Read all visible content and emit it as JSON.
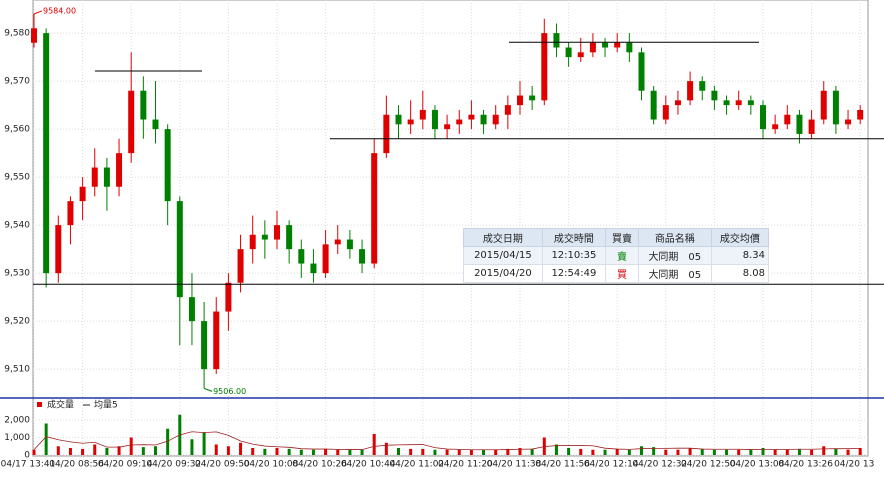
{
  "chart_data": [
    {
      "type": "candlestick",
      "categories": [
        "04/17 13:41",
        null,
        null,
        null,
        "04/20 08:56",
        null,
        null,
        null,
        "04/20 09:14",
        null,
        null,
        null,
        "04/20 09:32",
        null,
        null,
        null,
        "04/20 09:50",
        null,
        null,
        null,
        "04/20 10:08",
        null,
        null,
        null,
        "04/20 10:26",
        null,
        null,
        null,
        "04/20 10:44",
        null,
        null,
        null,
        "04/20 11:02",
        null,
        null,
        null,
        "04/20 11:20",
        null,
        null,
        null,
        "04/20 11:38",
        null,
        null,
        null,
        "04/20 11:56",
        null,
        null,
        null,
        "04/20 12:14",
        null,
        null,
        null,
        "04/20 12:32",
        null,
        null,
        null,
        "04/20 12:50",
        null,
        null,
        null,
        "04/20 13:08",
        null,
        null,
        null,
        "04/20 13:26",
        null,
        null,
        null,
        "04/20 13"
      ],
      "open": [
        9578,
        9580,
        9530,
        9540,
        9545,
        9548,
        9552,
        9548,
        9555,
        9568,
        9562,
        9560,
        9545,
        9525,
        9520,
        9510,
        9522,
        9528,
        9535,
        9538,
        9537,
        9540,
        9535,
        9532,
        9530,
        9536,
        9537,
        9535,
        9532,
        9555,
        9563,
        9561,
        9562,
        9564,
        9560,
        9561,
        9562,
        9563,
        9561,
        9563,
        9565,
        9567,
        9566,
        9580,
        9577,
        9575,
        9576,
        9578,
        9577,
        9578,
        9576,
        9568,
        9562,
        9565,
        9566,
        9570,
        9568,
        9566,
        9565,
        9566,
        9565,
        9560,
        9561,
        9563,
        9559,
        9562,
        9568,
        9561,
        9562
      ],
      "high": [
        9584,
        9581,
        9542,
        9546,
        9550,
        9556,
        9554,
        9558,
        9576,
        9571,
        9570,
        9561,
        9546,
        9530,
        9524,
        9525,
        9530,
        9538,
        9542,
        9541,
        9543,
        9541,
        9537,
        9535,
        9539,
        9540,
        9539,
        9537,
        9558,
        9567,
        9565,
        9566,
        9568,
        9565,
        9563,
        9564,
        9566,
        9564,
        9565,
        9567,
        9570,
        9569,
        9583,
        9582,
        9578,
        9579,
        9580,
        9579,
        9580,
        9580,
        9577,
        9569,
        9567,
        9568,
        9572,
        9571,
        9569,
        9567,
        9568,
        9567,
        9566,
        9563,
        9565,
        9564,
        9564,
        9570,
        9569,
        9564,
        9565
      ],
      "low": [
        9577,
        9527,
        9528,
        9536,
        9541,
        9546,
        9543,
        9546,
        9553,
        9558,
        9557,
        9540,
        9515,
        9515,
        9506,
        9509,
        9518,
        9526,
        9532,
        9533,
        9535,
        9532,
        9529,
        9528,
        9529,
        9534,
        9533,
        9530,
        9531,
        9554,
        9558,
        9559,
        9560,
        9558,
        9558,
        9559,
        9560,
        9559,
        9560,
        9560,
        9563,
        9564,
        9565,
        9575,
        9573,
        9574,
        9575,
        9575,
        9576,
        9574,
        9566,
        9561,
        9561,
        9563,
        9565,
        9566,
        9564,
        9563,
        9564,
        9563,
        9558,
        9559,
        9560,
        9557,
        9558,
        9561,
        9559,
        9560,
        9561
      ],
      "close": [
        9581,
        9530,
        9540,
        9545,
        9548,
        9552,
        9548,
        9555,
        9568,
        9562,
        9560,
        9545,
        9525,
        9520,
        9510,
        9522,
        9528,
        9535,
        9538,
        9537,
        9540,
        9535,
        9532,
        9530,
        9536,
        9537,
        9535,
        9532,
        9555,
        9563,
        9561,
        9562,
        9564,
        9560,
        9561,
        9562,
        9563,
        9561,
        9563,
        9565,
        9567,
        9566,
        9580,
        9577,
        9575,
        9576,
        9578,
        9577,
        9578,
        9576,
        9568,
        9562,
        9565,
        9566,
        9570,
        9568,
        9566,
        9565,
        9566,
        9565,
        9560,
        9561,
        9563,
        9559,
        9562,
        9568,
        9561,
        9562,
        9564
      ],
      "up_color": "#e00000",
      "down_color": "#008000",
      "ylim": [
        9504.2,
        9586.9
      ],
      "yticks": [
        {
          "value": 9510,
          "label": "9,510"
        },
        {
          "value": 9520,
          "label": "9,520"
        },
        {
          "value": 9530,
          "label": "9,530"
        },
        {
          "value": 9540,
          "label": "9,540"
        },
        {
          "value": 9550,
          "label": "9,550"
        },
        {
          "value": 9560,
          "label": "9,560"
        },
        {
          "value": 9570,
          "label": "9,570"
        },
        {
          "value": 9580,
          "label": "9,580"
        }
      ],
      "grid": true,
      "annotations": [
        {
          "value": 9584,
          "label": "9584.00"
        },
        {
          "value": 9506,
          "label": "9506.00"
        }
      ],
      "hlines": [
        9572.1,
        9578.1,
        9558,
        9527.7
      ]
    },
    {
      "type": "volume",
      "series": [
        {
          "name": "成交量",
          "color": "#e00000",
          "values": [
            300,
            1800,
            500,
            400,
            350,
            600,
            400,
            500,
            1000,
            450,
            500,
            1500,
            2300,
            900,
            1300,
            600,
            500,
            700,
            400,
            350,
            400,
            350,
            300,
            300,
            350,
            300,
            300,
            300,
            1200,
            700,
            400,
            350,
            350,
            300,
            300,
            300,
            300,
            300,
            300,
            350,
            400,
            350,
            1000,
            600,
            400,
            350,
            300,
            300,
            350,
            300,
            500,
            450,
            300,
            300,
            400,
            350,
            300,
            300,
            300,
            300,
            400,
            300,
            300,
            350,
            300,
            500,
            350,
            300,
            400
          ]
        },
        {
          "name": "均量5",
          "color": "#a02020",
          "values": [
            300,
            1050,
            870,
            750,
            670,
            730,
            450,
            450,
            570,
            590,
            570,
            790,
            1150,
            1330,
            1280,
            1320,
            1120,
            800,
            620,
            510,
            470,
            440,
            360,
            340,
            340,
            320,
            310,
            310,
            490,
            560,
            580,
            590,
            600,
            420,
            340,
            320,
            300,
            300,
            300,
            310,
            330,
            340,
            480,
            540,
            550,
            540,
            530,
            390,
            340,
            320,
            360,
            380,
            380,
            390,
            390,
            340,
            330,
            330,
            330,
            310,
            320,
            320,
            320,
            330,
            330,
            350,
            360,
            360,
            370
          ]
        }
      ],
      "ylim": [
        0,
        3000
      ],
      "yticks": [
        0,
        {
          "value": 1000,
          "label": "1,000"
        },
        {
          "value": 2000,
          "label": "2,000"
        }
      ]
    }
  ],
  "table": {
    "columns": [
      "成交日期",
      "成交時間",
      "買賣",
      "商品名稱",
      "成交均價"
    ],
    "rows": [
      [
        "2015/04/15",
        "12:10:35",
        "賣",
        "大同期　05",
        "8.34"
      ],
      [
        "2015/04/20",
        "12:54:49",
        "買",
        "大同期　05",
        "8.08"
      ]
    ]
  }
}
